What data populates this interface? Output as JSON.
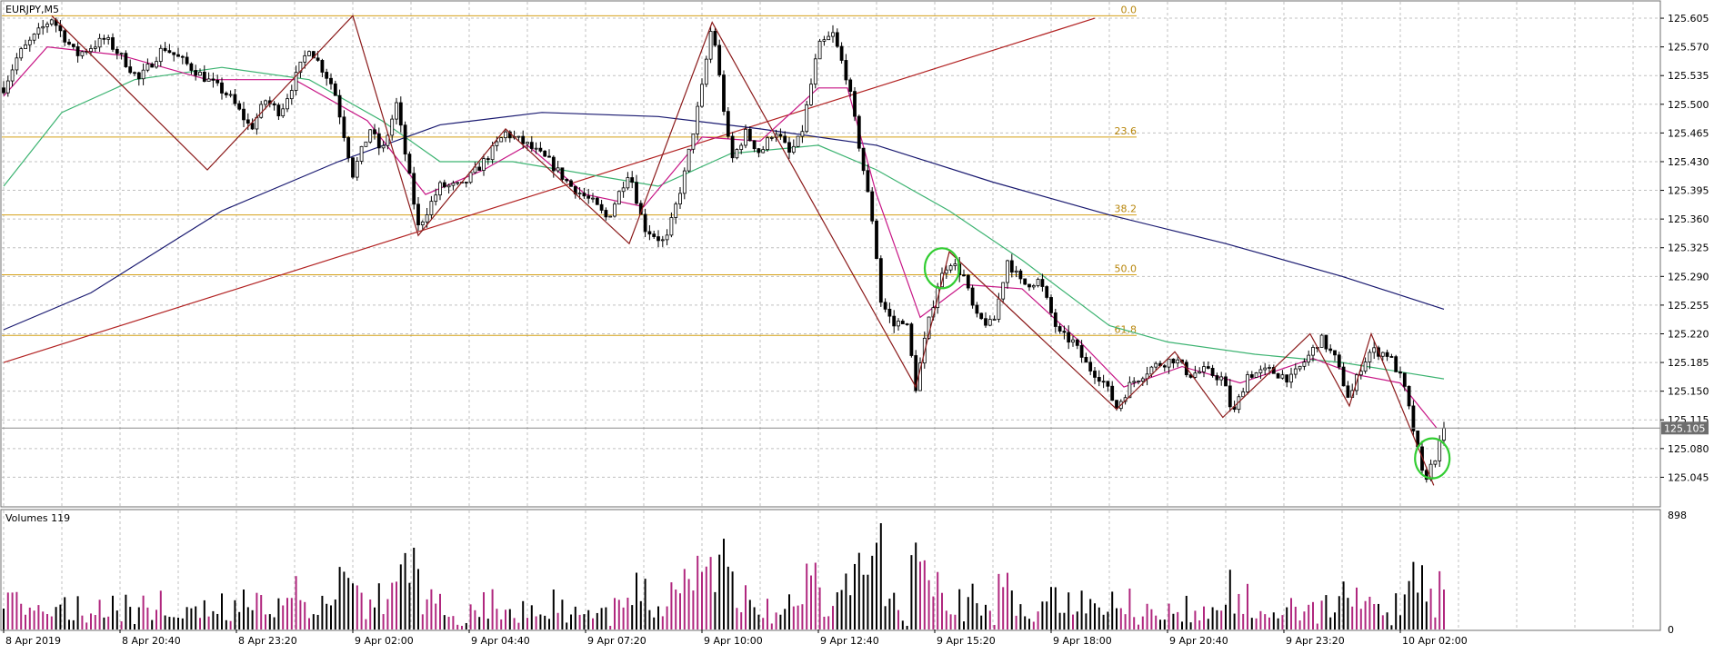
{
  "window": {
    "title": "EURJPY,M5"
  },
  "colors": {
    "background": "#ffffff",
    "grid": "#c0c0c0",
    "frame": "#6f6f6f",
    "bull_candle": "#ffffff",
    "bear_candle": "#000000",
    "fib_line": "#d4a017",
    "fib_text": "#b8860b",
    "zigzag": "#8b1a1a",
    "trendline": "#b22222",
    "ma_fast": "#c71585",
    "ma_mid": "#3cb371",
    "ma_slow": "#191970",
    "volume_bull": "#b0277e",
    "volume_bear": "#000000",
    "highlight_circle": "#32cd32",
    "price_box_bg": "#6e6e6e",
    "price_box_text": "#ffffff"
  },
  "chart_data": [
    {
      "type": "candlestick",
      "symbol": "EURJPY",
      "timeframe": "M5",
      "title": "EURJPY,M5",
      "ylim": [
        125.01,
        125.625
      ],
      "y_ticks": [
        "125.605",
        "125.570",
        "125.535",
        "125.500",
        "125.465",
        "125.430",
        "125.395",
        "125.360",
        "125.325",
        "125.290",
        "125.255",
        "125.220",
        "125.185",
        "125.150",
        "125.115",
        "125.080",
        "125.045"
      ],
      "x_ticks": [
        "8 Apr 2019",
        "8 Apr 20:40",
        "8 Apr 23:20",
        "9 Apr 02:00",
        "9 Apr 04:40",
        "9 Apr 07:20",
        "9 Apr 10:00",
        "9 Apr 12:40",
        "9 Apr 15:20",
        "9 Apr 18:00",
        "9 Apr 20:40",
        "9 Apr 23:20",
        "10 Apr 02:00"
      ],
      "current_price": "125.105",
      "grid": true,
      "price_path": [
        {
          "t": 0,
          "p": 125.52
        },
        {
          "t": 10,
          "p": 125.56
        },
        {
          "t": 25,
          "p": 125.59
        },
        {
          "t": 33,
          "p": 125.605
        },
        {
          "t": 50,
          "p": 125.56
        },
        {
          "t": 70,
          "p": 125.58
        },
        {
          "t": 80,
          "p": 125.56
        },
        {
          "t": 93,
          "p": 125.53
        },
        {
          "t": 110,
          "p": 125.57
        },
        {
          "t": 125,
          "p": 125.55
        },
        {
          "t": 140,
          "p": 125.53
        },
        {
          "t": 155,
          "p": 125.51
        },
        {
          "t": 170,
          "p": 125.47
        },
        {
          "t": 180,
          "p": 125.505
        },
        {
          "t": 190,
          "p": 125.49
        },
        {
          "t": 210,
          "p": 125.57
        },
        {
          "t": 227,
          "p": 125.52
        },
        {
          "t": 240,
          "p": 125.415
        },
        {
          "t": 252,
          "p": 125.47
        },
        {
          "t": 260,
          "p": 125.44
        },
        {
          "t": 270,
          "p": 125.5
        },
        {
          "t": 285,
          "p": 125.35
        },
        {
          "t": 300,
          "p": 125.4
        },
        {
          "t": 315,
          "p": 125.4
        },
        {
          "t": 330,
          "p": 125.43
        },
        {
          "t": 345,
          "p": 125.465
        },
        {
          "t": 360,
          "p": 125.45
        },
        {
          "t": 375,
          "p": 125.43
        },
        {
          "t": 390,
          "p": 125.4
        },
        {
          "t": 405,
          "p": 125.38
        },
        {
          "t": 415,
          "p": 125.36
        },
        {
          "t": 430,
          "p": 125.42
        },
        {
          "t": 440,
          "p": 125.35
        },
        {
          "t": 455,
          "p": 125.33
        },
        {
          "t": 468,
          "p": 125.415
        },
        {
          "t": 480,
          "p": 125.52
        },
        {
          "t": 487,
          "p": 125.6
        },
        {
          "t": 493,
          "p": 125.52
        },
        {
          "t": 500,
          "p": 125.43
        },
        {
          "t": 510,
          "p": 125.465
        },
        {
          "t": 520,
          "p": 125.44
        },
        {
          "t": 530,
          "p": 125.47
        },
        {
          "t": 540,
          "p": 125.44
        },
        {
          "t": 548,
          "p": 125.46
        },
        {
          "t": 560,
          "p": 125.57
        },
        {
          "t": 570,
          "p": 125.585
        },
        {
          "t": 580,
          "p": 125.53
        },
        {
          "t": 590,
          "p": 125.43
        },
        {
          "t": 598,
          "p": 125.35
        },
        {
          "t": 603,
          "p": 125.26
        },
        {
          "t": 612,
          "p": 125.23
        },
        {
          "t": 620,
          "p": 125.24
        },
        {
          "t": 627,
          "p": 125.155
        },
        {
          "t": 634,
          "p": 125.22
        },
        {
          "t": 642,
          "p": 125.28
        },
        {
          "t": 650,
          "p": 125.31
        },
        {
          "t": 660,
          "p": 125.29
        },
        {
          "t": 668,
          "p": 125.24
        },
        {
          "t": 680,
          "p": 125.23
        },
        {
          "t": 690,
          "p": 125.31
        },
        {
          "t": 700,
          "p": 125.28
        },
        {
          "t": 712,
          "p": 125.285
        },
        {
          "t": 725,
          "p": 125.22
        },
        {
          "t": 735,
          "p": 125.21
        },
        {
          "t": 745,
          "p": 125.18
        },
        {
          "t": 755,
          "p": 125.165
        },
        {
          "t": 765,
          "p": 125.13
        },
        {
          "t": 775,
          "p": 125.16
        },
        {
          "t": 790,
          "p": 125.18
        },
        {
          "t": 805,
          "p": 125.19
        },
        {
          "t": 815,
          "p": 125.17
        },
        {
          "t": 825,
          "p": 125.175
        },
        {
          "t": 838,
          "p": 125.165
        },
        {
          "t": 845,
          "p": 125.12
        },
        {
          "t": 855,
          "p": 125.17
        },
        {
          "t": 870,
          "p": 125.175
        },
        {
          "t": 885,
          "p": 125.165
        },
        {
          "t": 898,
          "p": 125.195
        },
        {
          "t": 905,
          "p": 125.215
        },
        {
          "t": 915,
          "p": 125.19
        },
        {
          "t": 925,
          "p": 125.14
        },
        {
          "t": 933,
          "p": 125.18
        },
        {
          "t": 940,
          "p": 125.2
        },
        {
          "t": 952,
          "p": 125.195
        },
        {
          "t": 962,
          "p": 125.16
        },
        {
          "t": 970,
          "p": 125.095
        },
        {
          "t": 976,
          "p": 125.04
        },
        {
          "t": 983,
          "p": 125.065
        },
        {
          "t": 990,
          "p": 125.1
        }
      ],
      "zigzag": [
        {
          "t": 33,
          "p": 125.608
        },
        {
          "t": 140,
          "p": 125.42
        },
        {
          "t": 240,
          "p": 125.608
        },
        {
          "t": 285,
          "p": 125.34
        },
        {
          "t": 345,
          "p": 125.47
        },
        {
          "t": 430,
          "p": 125.33
        },
        {
          "t": 487,
          "p": 125.6
        },
        {
          "t": 627,
          "p": 125.155
        },
        {
          "t": 650,
          "p": 125.32
        },
        {
          "t": 765,
          "p": 125.128
        },
        {
          "t": 805,
          "p": 125.198
        },
        {
          "t": 838,
          "p": 125.118
        },
        {
          "t": 898,
          "p": 125.22
        },
        {
          "t": 925,
          "p": 125.132
        },
        {
          "t": 940,
          "p": 125.22
        },
        {
          "t": 983,
          "p": 125.035
        }
      ],
      "trendline": [
        {
          "t": 0,
          "p": 125.185
        },
        {
          "t": 750,
          "p": 125.605
        }
      ],
      "ma_fast": [
        {
          "t": 0,
          "p": 125.51
        },
        {
          "t": 30,
          "p": 125.57
        },
        {
          "t": 80,
          "p": 125.56
        },
        {
          "t": 140,
          "p": 125.53
        },
        {
          "t": 200,
          "p": 125.53
        },
        {
          "t": 250,
          "p": 125.48
        },
        {
          "t": 290,
          "p": 125.39
        },
        {
          "t": 330,
          "p": 125.42
        },
        {
          "t": 360,
          "p": 125.45
        },
        {
          "t": 400,
          "p": 125.39
        },
        {
          "t": 440,
          "p": 125.375
        },
        {
          "t": 480,
          "p": 125.46
        },
        {
          "t": 520,
          "p": 125.455
        },
        {
          "t": 560,
          "p": 125.52
        },
        {
          "t": 580,
          "p": 125.52
        },
        {
          "t": 600,
          "p": 125.39
        },
        {
          "t": 630,
          "p": 125.24
        },
        {
          "t": 660,
          "p": 125.28
        },
        {
          "t": 700,
          "p": 125.275
        },
        {
          "t": 740,
          "p": 125.21
        },
        {
          "t": 770,
          "p": 125.155
        },
        {
          "t": 810,
          "p": 125.18
        },
        {
          "t": 850,
          "p": 125.16
        },
        {
          "t": 900,
          "p": 125.19
        },
        {
          "t": 930,
          "p": 125.17
        },
        {
          "t": 960,
          "p": 125.16
        },
        {
          "t": 985,
          "p": 125.105
        }
      ],
      "ma_mid": [
        {
          "t": 0,
          "p": 125.4
        },
        {
          "t": 40,
          "p": 125.49
        },
        {
          "t": 90,
          "p": 125.53
        },
        {
          "t": 150,
          "p": 125.545
        },
        {
          "t": 210,
          "p": 125.53
        },
        {
          "t": 260,
          "p": 125.48
        },
        {
          "t": 300,
          "p": 125.43
        },
        {
          "t": 350,
          "p": 125.43
        },
        {
          "t": 400,
          "p": 125.415
        },
        {
          "t": 450,
          "p": 125.4
        },
        {
          "t": 500,
          "p": 125.44
        },
        {
          "t": 560,
          "p": 125.45
        },
        {
          "t": 600,
          "p": 125.42
        },
        {
          "t": 650,
          "p": 125.37
        },
        {
          "t": 700,
          "p": 125.31
        },
        {
          "t": 760,
          "p": 125.23
        },
        {
          "t": 800,
          "p": 125.21
        },
        {
          "t": 860,
          "p": 125.195
        },
        {
          "t": 920,
          "p": 125.185
        },
        {
          "t": 990,
          "p": 125.165
        }
      ],
      "ma_slow": [
        {
          "t": 0,
          "p": 125.225
        },
        {
          "t": 60,
          "p": 125.27
        },
        {
          "t": 150,
          "p": 125.37
        },
        {
          "t": 230,
          "p": 125.43
        },
        {
          "t": 300,
          "p": 125.475
        },
        {
          "t": 370,
          "p": 125.49
        },
        {
          "t": 450,
          "p": 125.485
        },
        {
          "t": 520,
          "p": 125.47
        },
        {
          "t": 600,
          "p": 125.45
        },
        {
          "t": 680,
          "p": 125.405
        },
        {
          "t": 760,
          "p": 125.365
        },
        {
          "t": 840,
          "p": 125.33
        },
        {
          "t": 920,
          "p": 125.29
        },
        {
          "t": 990,
          "p": 125.25
        }
      ],
      "highlight_circles": [
        {
          "t": 645,
          "p": 125.3
        },
        {
          "t": 982,
          "p": 125.068
        }
      ]
    },
    {
      "type": "volume_bar",
      "title": "Volumes 119",
      "ylim": [
        0,
        898
      ],
      "y_ticks": [
        "898",
        "0"
      ]
    }
  ],
  "fib_levels": [
    {
      "label": "0.0",
      "price": 125.608
    },
    {
      "label": "23.6",
      "price": 125.46
    },
    {
      "label": "38.2",
      "price": 125.365
    },
    {
      "label": "50.0",
      "price": 125.292
    },
    {
      "label": "61.8",
      "price": 125.218
    }
  ]
}
